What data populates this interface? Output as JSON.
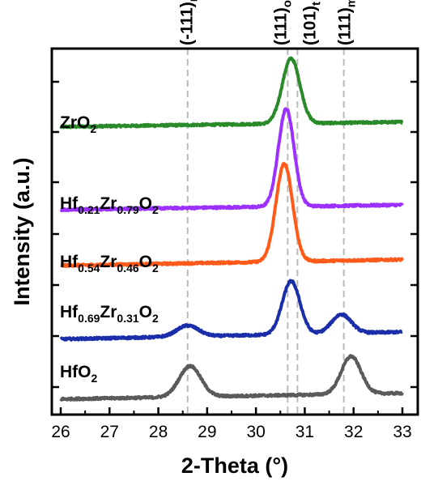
{
  "chart_data": {
    "type": "line",
    "title": "",
    "xlabel": "2-Theta (°)",
    "ylabel": "Intensity (a.u.)",
    "xlim": [
      26,
      33
    ],
    "ylim": [
      0,
      10
    ],
    "xticks": [
      "26",
      "27",
      "28",
      "29",
      "30",
      "31",
      "32",
      "33"
    ],
    "grid": false,
    "legend": "none",
    "reference_lines": [
      {
        "x": 28.6,
        "label_base": "(-111)",
        "label_sub": "m"
      },
      {
        "x": 30.65,
        "label_base": "(111)",
        "label_sub": "o"
      },
      {
        "x": 30.85,
        "label_base": "(101)",
        "label_sub": "t"
      },
      {
        "x": 31.8,
        "label_base": "(111)",
        "label_sub": "m"
      }
    ],
    "series": [
      {
        "color": "#2a8a2a",
        "label_parts": [
          [
            "ZrO",
            false
          ],
          [
            "2",
            true
          ]
        ],
        "baseline": 8.0,
        "slope": 0.02,
        "noise": 0.03,
        "peaks": [
          {
            "center": 30.72,
            "height": 1.9,
            "width": 0.18
          }
        ]
      },
      {
        "color": "#9b30ff",
        "label_parts": [
          [
            "Hf",
            false
          ],
          [
            "0.21",
            true
          ],
          [
            "Zr",
            false
          ],
          [
            "0.79",
            true
          ],
          [
            "O",
            false
          ],
          [
            "2",
            true
          ]
        ],
        "baseline": 5.58,
        "slope": 0.02,
        "noise": 0.03,
        "peaks": [
          {
            "center": 30.62,
            "height": 2.85,
            "width": 0.16
          }
        ]
      },
      {
        "color": "#ff5a1a",
        "label_parts": [
          [
            "Hf",
            false
          ],
          [
            "0.54",
            true
          ],
          [
            "Zr",
            false
          ],
          [
            "0.46",
            true
          ],
          [
            "O",
            false
          ],
          [
            "2",
            true
          ]
        ],
        "baseline": 3.95,
        "slope": 0.025,
        "noise": 0.03,
        "peaks": [
          {
            "center": 30.58,
            "height": 2.85,
            "width": 0.17
          }
        ]
      },
      {
        "color": "#1a2eaa",
        "label_parts": [
          [
            "Hf",
            false
          ],
          [
            "0.69",
            true
          ],
          [
            "Zr",
            false
          ],
          [
            "0.31",
            true
          ],
          [
            "O",
            false
          ],
          [
            "2",
            true
          ]
        ],
        "baseline": 1.8,
        "slope": 0.03,
        "noise": 0.03,
        "peaks": [
          {
            "center": 28.6,
            "height": 0.32,
            "width": 0.22
          },
          {
            "center": 30.72,
            "height": 1.55,
            "width": 0.18
          },
          {
            "center": 31.75,
            "height": 0.55,
            "width": 0.2
          }
        ]
      },
      {
        "color": "#5a5a5a",
        "label_parts": [
          [
            "HfO",
            false
          ],
          [
            "2",
            true
          ]
        ],
        "baseline": 0.05,
        "slope": 0.025,
        "noise": 0.03,
        "peaks": [
          {
            "center": 28.65,
            "height": 0.9,
            "width": 0.22
          },
          {
            "center": 31.95,
            "height": 1.1,
            "width": 0.2
          }
        ]
      }
    ]
  }
}
